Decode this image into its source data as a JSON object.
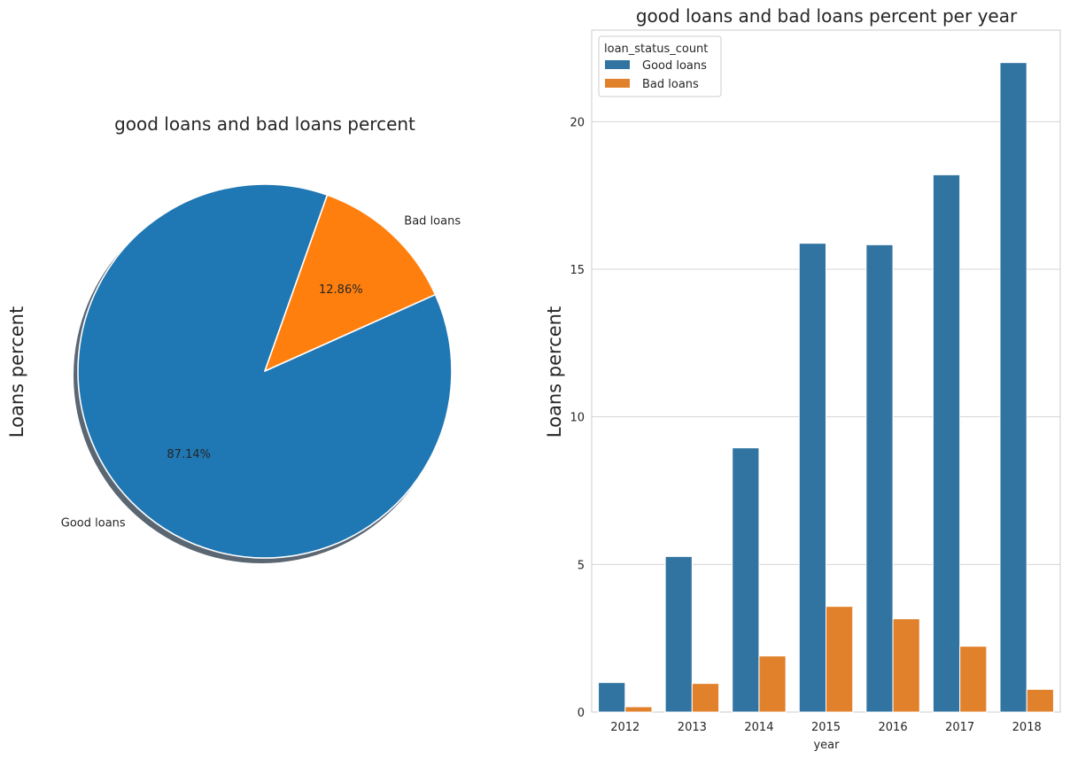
{
  "chart_data": [
    {
      "type": "pie",
      "title": "good loans and bad loans percent",
      "ylabel": "Loans percent",
      "labels": [
        "Good loans",
        "Bad loans"
      ],
      "values": [
        87.14,
        12.86
      ],
      "value_labels": [
        "87.14%",
        "12.86%"
      ],
      "colors": [
        "#1f77b4",
        "#ff7f0e"
      ],
      "shadow": true
    },
    {
      "type": "bar",
      "title": "good loans and bad loans percent per year",
      "xlabel": "year",
      "ylabel": "Loans percent",
      "categories": [
        "2012",
        "2013",
        "2014",
        "2015",
        "2016",
        "2017",
        "2018"
      ],
      "series": [
        {
          "name": "Good loans",
          "values": [
            1.0,
            5.27,
            8.95,
            15.88,
            15.83,
            18.2,
            22.0
          ],
          "color": "#3274a1"
        },
        {
          "name": "Bad loans",
          "values": [
            0.18,
            0.97,
            1.9,
            3.58,
            3.16,
            2.23,
            0.77
          ],
          "color": "#e1812c"
        }
      ],
      "ylim": [
        0,
        23.1
      ],
      "yticks": [
        0,
        5,
        10,
        15,
        20
      ],
      "ytick_labels": [
        "0",
        "5",
        "10",
        "15",
        "20"
      ],
      "legend": {
        "title": "loan_status_count",
        "placement": "top-left"
      },
      "grid": "y"
    }
  ]
}
